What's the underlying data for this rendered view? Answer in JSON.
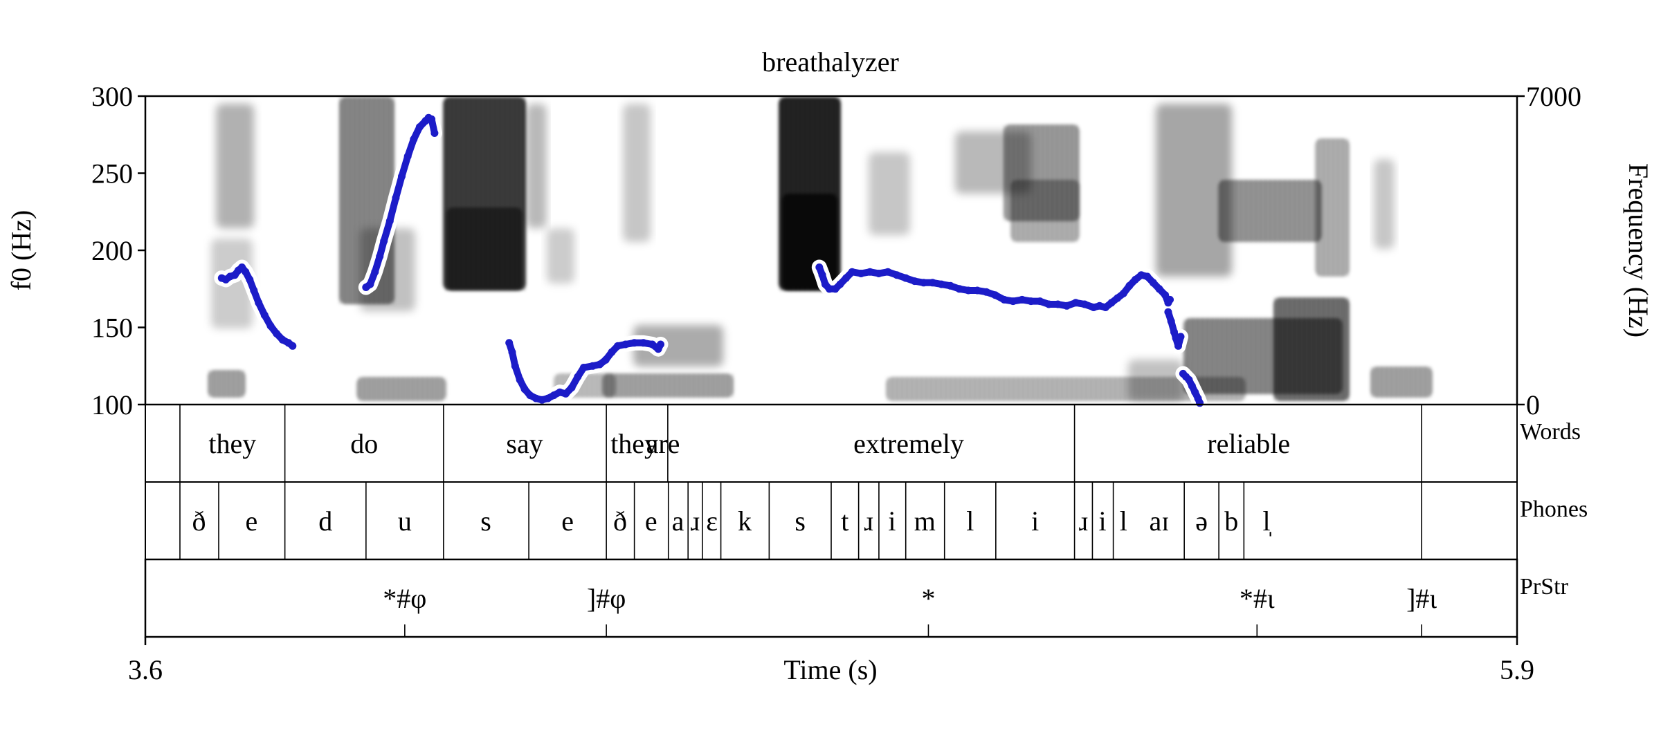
{
  "chart_data": {
    "type": "line",
    "title": "breathalyzer",
    "xlabel": "Time (s)",
    "ylabel_left": "f0 (Hz)",
    "ylabel_right": "Frequency (Hz)",
    "xlim": [
      3.6,
      5.9
    ],
    "ylim_left": [
      100,
      300
    ],
    "ylim_right": [
      0,
      7000
    ],
    "x_tick_labels": [
      "3.6",
      "5.9"
    ],
    "y_left_ticks": [
      100,
      150,
      200,
      250,
      300
    ],
    "y_right_tick_labels": [
      "0",
      "7000"
    ],
    "series": [
      {
        "color": "#1c1cc8",
        "segments": [
          [
            [
              3.728,
              182
            ],
            [
              3.735,
              181
            ],
            [
              3.742,
              183
            ],
            [
              3.75,
              184
            ],
            [
              3.756,
              187
            ],
            [
              3.762,
              189
            ],
            [
              3.768,
              186
            ],
            [
              3.775,
              181
            ],
            [
              3.782,
              174
            ],
            [
              3.79,
              166
            ],
            [
              3.8,
              158
            ],
            [
              3.81,
              151
            ],
            [
              3.82,
              146
            ],
            [
              3.83,
              142
            ],
            [
              3.84,
              140
            ],
            [
              3.847,
              138
            ]
          ],
          [
            [
              3.97,
              176
            ],
            [
              3.977,
              178
            ],
            [
              3.985,
              186
            ],
            [
              3.993,
              196
            ],
            [
              4.0,
              206
            ],
            [
              4.01,
              219
            ],
            [
              4.02,
              234
            ],
            [
              4.03,
              248
            ],
            [
              4.04,
              261
            ],
            [
              4.05,
              272
            ],
            [
              4.06,
              280
            ],
            [
              4.07,
              284
            ],
            [
              4.075,
              286
            ],
            [
              4.08,
              285
            ],
            [
              4.085,
              276
            ]
          ],
          [
            [
              4.21,
              140
            ],
            [
              4.215,
              134
            ],
            [
              4.22,
              125
            ],
            [
              4.228,
              116
            ],
            [
              4.236,
              110
            ],
            [
              4.245,
              106
            ],
            [
              4.255,
              104
            ],
            [
              4.265,
              103
            ],
            [
              4.275,
              104
            ],
            [
              4.285,
              106
            ],
            [
              4.295,
              108
            ],
            [
              4.305,
              107
            ],
            [
              4.315,
              111
            ],
            [
              4.325,
              118
            ],
            [
              4.335,
              124
            ],
            [
              4.35,
              125
            ],
            [
              4.362,
              126
            ],
            [
              4.372,
              129
            ],
            [
              4.382,
              134
            ],
            [
              4.392,
              138
            ],
            [
              4.405,
              139
            ],
            [
              4.42,
              140
            ],
            [
              4.435,
              140
            ],
            [
              4.45,
              139
            ],
            [
              4.46,
              136
            ],
            [
              4.464,
              139
            ]
          ],
          [
            [
              4.73,
              189
            ],
            [
              4.735,
              184
            ],
            [
              4.74,
              178
            ],
            [
              4.747,
              175
            ],
            [
              4.757,
              175
            ],
            [
              4.765,
              178
            ],
            [
              4.775,
              182
            ],
            [
              4.785,
              186
            ],
            [
              4.8,
              185
            ],
            [
              4.815,
              186
            ],
            [
              4.83,
              185
            ],
            [
              4.845,
              186
            ],
            [
              4.86,
              184
            ],
            [
              4.875,
              182
            ],
            [
              4.89,
              180
            ],
            [
              4.905,
              179
            ],
            [
              4.92,
              179
            ],
            [
              4.935,
              178
            ],
            [
              4.95,
              177
            ],
            [
              4.965,
              175
            ],
            [
              4.98,
              174
            ],
            [
              4.995,
              174
            ],
            [
              5.01,
              173
            ],
            [
              5.025,
              171
            ],
            [
              5.04,
              168
            ],
            [
              5.055,
              167
            ],
            [
              5.07,
              168
            ],
            [
              5.085,
              167
            ],
            [
              5.1,
              167
            ],
            [
              5.115,
              165
            ],
            [
              5.13,
              165
            ],
            [
              5.145,
              164
            ],
            [
              5.16,
              166
            ],
            [
              5.175,
              165
            ],
            [
              5.19,
              163
            ],
            [
              5.2,
              164
            ],
            [
              5.21,
              163
            ],
            [
              5.22,
              166
            ],
            [
              5.23,
              169
            ],
            [
              5.24,
              172
            ],
            [
              5.25,
              177
            ],
            [
              5.26,
              181
            ],
            [
              5.27,
              184
            ],
            [
              5.28,
              183
            ],
            [
              5.29,
              179
            ],
            [
              5.3,
              175
            ],
            [
              5.31,
              171
            ],
            [
              5.315,
              166
            ],
            [
              5.318,
              168
            ]
          ],
          [
            [
              5.315,
              160
            ],
            [
              5.32,
              154
            ],
            [
              5.325,
              147
            ],
            [
              5.328,
              143
            ],
            [
              5.332,
              138
            ],
            [
              5.336,
              144
            ]
          ],
          [
            [
              5.34,
              120
            ],
            [
              5.345,
              118
            ],
            [
              5.35,
              116
            ],
            [
              5.355,
              112
            ],
            [
              5.36,
              108
            ],
            [
              5.365,
              104
            ],
            [
              5.368,
              101
            ]
          ]
        ]
      }
    ],
    "tiers": [
      {
        "name": "Words",
        "boundaries": [
          3.658,
          3.834,
          4.1,
          4.373,
          4.476,
          5.158,
          5.74
        ],
        "labels": [
          {
            "text": "they",
            "x": 3.746
          },
          {
            "text": "do",
            "x": 3.967
          },
          {
            "text": "say",
            "x": 4.236
          },
          {
            "text": "they",
            "x": 4.42
          },
          {
            "text": "are",
            "x": 4.468
          },
          {
            "text": "extremely",
            "x": 4.88
          },
          {
            "text": "reliable",
            "x": 5.45
          }
        ]
      },
      {
        "name": "Phones",
        "boundaries": [
          3.658,
          3.723,
          3.834,
          3.97,
          4.1,
          4.243,
          4.373,
          4.42,
          4.477,
          4.51,
          4.534,
          4.565,
          4.646,
          4.75,
          4.796,
          4.83,
          4.875,
          4.94,
          5.026,
          5.158,
          5.188,
          5.223,
          5.342,
          5.4,
          5.442,
          5.74
        ],
        "labels": [
          {
            "text": "ð",
            "x": 3.69
          },
          {
            "text": "e",
            "x": 3.778
          },
          {
            "text": "d",
            "x": 3.902
          },
          {
            "text": "u",
            "x": 4.035
          },
          {
            "text": "s",
            "x": 4.171
          },
          {
            "text": "e",
            "x": 4.308
          },
          {
            "text": "ð",
            "x": 4.396
          },
          {
            "text": "e",
            "x": 4.448
          },
          {
            "text": "a",
            "x": 4.493
          },
          {
            "text": "ɹ",
            "x": 4.522
          },
          {
            "text": "ɛ",
            "x": 4.55
          },
          {
            "text": "k",
            "x": 4.605
          },
          {
            "text": "s",
            "x": 4.698
          },
          {
            "text": "t",
            "x": 4.773
          },
          {
            "text": "ɹ",
            "x": 4.813
          },
          {
            "text": "i",
            "x": 4.852
          },
          {
            "text": "m",
            "x": 4.907
          },
          {
            "text": "l",
            "x": 4.983
          },
          {
            "text": "i",
            "x": 5.092
          },
          {
            "text": "ɹ",
            "x": 5.173
          },
          {
            "text": "i",
            "x": 5.205
          },
          {
            "text": "l",
            "x": 5.24
          },
          {
            "text": "aɪ",
            "x": 5.3
          },
          {
            "text": "ə",
            "x": 5.371
          },
          {
            "text": "b",
            "x": 5.421
          },
          {
            "text": "l̩",
            "x": 5.48
          }
        ]
      },
      {
        "name": "PrStr",
        "points": [
          {
            "text": "*#φ",
            "x": 4.035
          },
          {
            "text": "]#φ",
            "x": 4.373
          },
          {
            "text": "*",
            "x": 4.913
          },
          {
            "text": "*#ι",
            "x": 5.464
          },
          {
            "text": "]#ι",
            "x": 5.74
          }
        ]
      }
    ],
    "grid": false,
    "legend": "none",
    "colors": {
      "f0": "#1c1cc8",
      "f0_halo": "#ffffff",
      "spectrogram": "#000000",
      "axis": "#000000"
    }
  }
}
